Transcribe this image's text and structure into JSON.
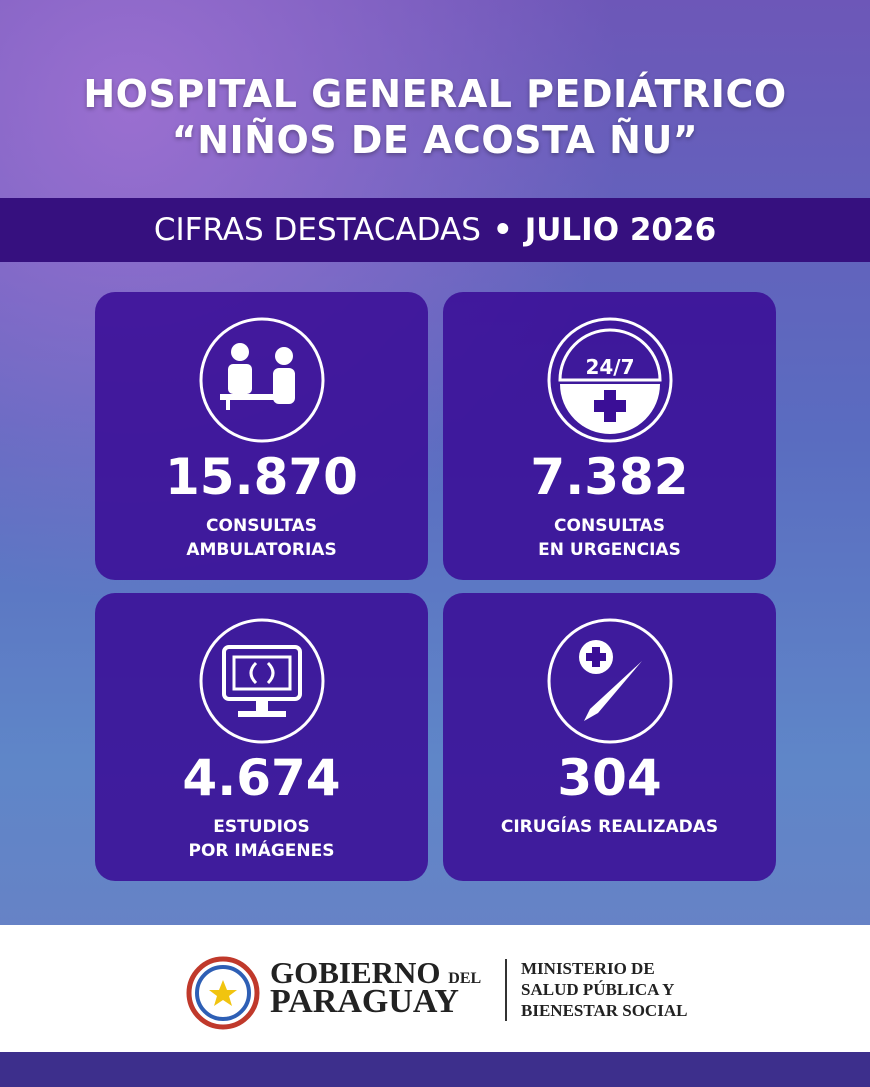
{
  "header": {
    "title_lines": [
      "HOSPITAL GENERAL PEDIÁTRICO",
      "“NIÑOS DE ACOSTA ÑU”"
    ]
  },
  "banner": {
    "label": "CIFRAS DESTACADAS",
    "separator": "•",
    "period": "JULIO 2026"
  },
  "cards": [
    {
      "value": "15.870",
      "label_lines": [
        "CONSULTAS",
        "AMBULATORIAS"
      ]
    },
    {
      "icon_text": "24/7",
      "value": "7.382",
      "label_lines": [
        "CONSULTAS",
        "EN URGENCIAS"
      ]
    },
    {
      "value": "4.674",
      "label_lines": [
        "ESTUDIOS",
        "POR IMÁGENES"
      ]
    },
    {
      "value": "304",
      "label_lines": [
        "CIRUGÍAS REALIZADAS"
      ]
    }
  ],
  "footer": {
    "gov_line1": "GOBIERNO",
    "gov_del": "DEL",
    "gov_line2": "PARAGUAY",
    "ministry_lines": [
      "MINISTERIO DE",
      "SALUD PÚBLICA Y",
      "BIENESTAR SOCIAL"
    ]
  }
}
